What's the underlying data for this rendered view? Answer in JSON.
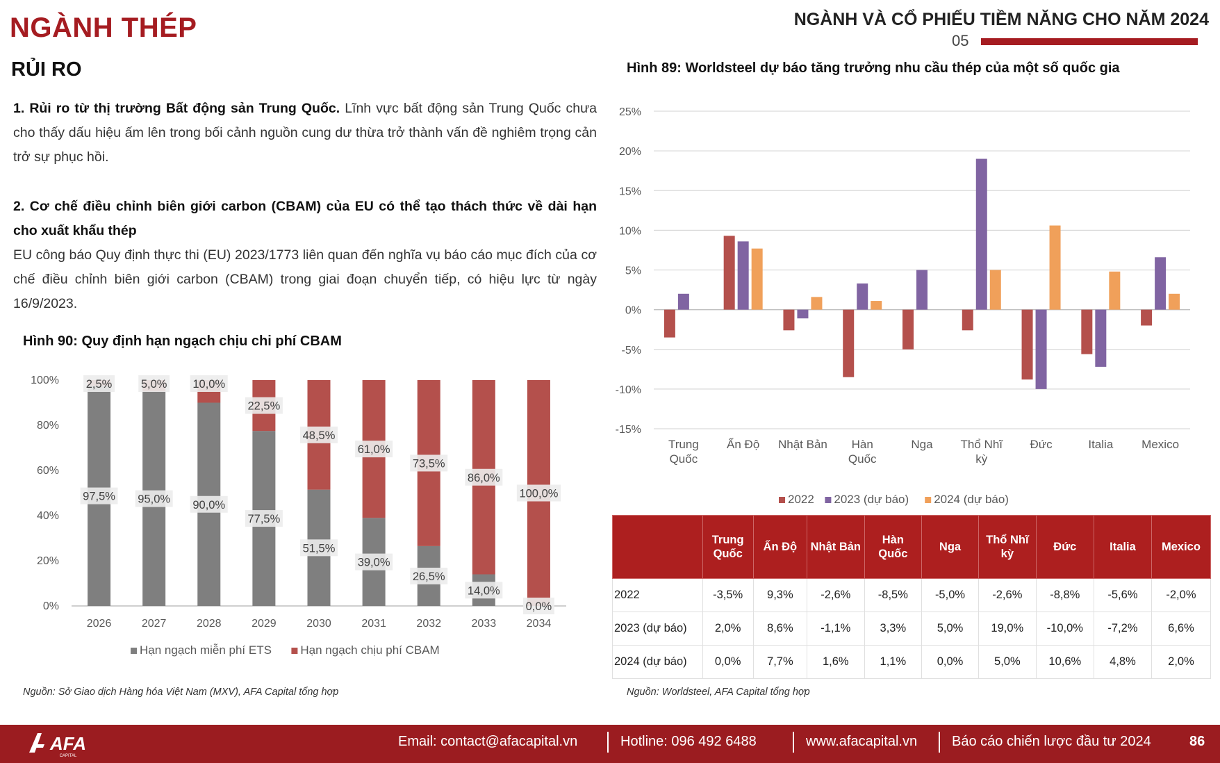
{
  "header": {
    "section_title": "NGÀNH THÉP",
    "report_title": "NGÀNH VÀ CỔ PHIẾU TIỀM NĂNG CHO NĂM 2024",
    "chapter_number": "05",
    "subsection_title": "RỦI RO"
  },
  "body": {
    "p1_bold": "1. Rủi ro từ thị trường Bất động sản Trung Quốc.",
    "p1_text": " Lĩnh vực bất động sản Trung Quốc chưa cho thấy dấu hiệu ấm lên trong bối cảnh nguồn cung dư thừa trở thành vấn đề nghiêm trọng cản trở sự phục hồi.",
    "p2_bold": "2. Cơ chế điều chỉnh biên giới carbon (CBAM) của EU có thể tạo thách thức về dài hạn cho xuất khẩu thép",
    "p2_text": "EU công báo Quy định thực thi (EU) 2023/1773 liên quan đến nghĩa vụ báo cáo mục đích của cơ chế điều chỉnh biên giới carbon (CBAM) trong giai đoạn chuyển tiếp, có hiệu lực từ ngày 16/9/2023."
  },
  "fig90": {
    "title": "Hình 90: Quy định hạn ngạch chịu chi phí CBAM",
    "source": "Nguồn:  Sở Giao dịch Hàng hóa Việt Nam (MXV), AFA Capital tổng hợp"
  },
  "fig89": {
    "title": "Hình 89: Worldsteel dự báo tăng trưởng nhu cầu thép của một số quốc gia",
    "source": "Nguồn:  Worldsteel, AFA Capital tổng hợp"
  },
  "chart_data": [
    {
      "type": "bar",
      "stacked": true,
      "categories": [
        "2026",
        "2027",
        "2028",
        "2029",
        "2030",
        "2031",
        "2032",
        "2033",
        "2034"
      ],
      "series": [
        {
          "name": "Hạn ngạch miễn phí ETS",
          "color": "#7f7f7f",
          "values": [
            97.5,
            95.0,
            90.0,
            77.5,
            51.5,
            39.0,
            26.5,
            14.0,
            0.0
          ],
          "labels": [
            "97,5%",
            "95,0%",
            "90,0%",
            "77,5%",
            "51,5%",
            "39,0%",
            "26,5%",
            "14,0%",
            "0,0%"
          ]
        },
        {
          "name": "Hạn ngạch chịu phí CBAM",
          "color": "#b4504c",
          "values": [
            2.5,
            5.0,
            10.0,
            22.5,
            48.5,
            61.0,
            73.5,
            86.0,
            100.0
          ],
          "labels": [
            "2,5%",
            "5,0%",
            "10,0%",
            "22,5%",
            "48,5%",
            "61,0%",
            "73,5%",
            "86,0%",
            "100,0%"
          ]
        }
      ],
      "ylim": [
        0,
        100
      ],
      "yticks": [
        "0%",
        "20%",
        "40%",
        "60%",
        "80%",
        "100%"
      ],
      "legend": "bottom"
    },
    {
      "type": "bar",
      "categories": [
        "Trung Quốc",
        "Ấn Độ",
        "Nhật Bản",
        "Hàn Quốc",
        "Nga",
        "Thổ Nhĩ kỳ",
        "Đức",
        "Italia",
        "Mexico"
      ],
      "category_lines": [
        [
          "Trung",
          "Quốc"
        ],
        [
          "Ấn Độ"
        ],
        [
          "Nhật Bản"
        ],
        [
          "Hàn",
          "Quốc"
        ],
        [
          "Nga"
        ],
        [
          "Thổ Nhĩ",
          "kỳ"
        ],
        [
          "Đức"
        ],
        [
          "Italia"
        ],
        [
          "Mexico"
        ]
      ],
      "series": [
        {
          "name": "2022",
          "color": "#b4504c",
          "values": [
            -3.5,
            9.3,
            -2.6,
            -8.5,
            -5.0,
            -2.6,
            -8.8,
            -5.6,
            -2.0
          ]
        },
        {
          "name": "2023 (dự báo)",
          "color": "#8064a2",
          "values": [
            2.0,
            8.6,
            -1.1,
            3.3,
            5.0,
            19.0,
            -10.0,
            -7.2,
            6.6
          ]
        },
        {
          "name": "2024 (dự báo)",
          "color": "#f0a05a",
          "values": [
            0.0,
            7.7,
            1.6,
            1.1,
            0.0,
            5.0,
            10.6,
            4.8,
            2.0
          ]
        }
      ],
      "ylim": [
        -15,
        25
      ],
      "yticks": [
        "-15%",
        "-10%",
        "-5%",
        "0%",
        "5%",
        "10%",
        "15%",
        "20%",
        "25%"
      ],
      "grid": true,
      "legend": "bottom"
    }
  ],
  "table": {
    "headers": [
      "",
      "Trung Quốc",
      "Ấn Độ",
      "Nhật Bản",
      "Hàn Quốc",
      "Nga",
      "Thổ Nhĩ kỳ",
      "Đức",
      "Italia",
      "Mexico"
    ],
    "rows": [
      [
        "2022",
        "-3,5%",
        "9,3%",
        "-2,6%",
        "-8,5%",
        "-5,0%",
        "-2,6%",
        "-8,8%",
        "-5,6%",
        "-2,0%"
      ],
      [
        "2023 (dự báo)",
        "2,0%",
        "8,6%",
        "-1,1%",
        "3,3%",
        "5,0%",
        "19,0%",
        "-10,0%",
        "-7,2%",
        "6,6%"
      ],
      [
        "2024 (dự báo)",
        "0,0%",
        "7,7%",
        "1,6%",
        "1,1%",
        "0,0%",
        "5,0%",
        "10,6%",
        "4,8%",
        "2,0%"
      ]
    ]
  },
  "footer": {
    "logo_text": "AFA",
    "logo_sub": "CAPITAL",
    "email": "Email: contact@afacapital.vn",
    "hotline": "Hotline: 096 492 6488",
    "website": "www.afacapital.vn",
    "report_name": "Báo cáo chiến lược đầu tư 2024",
    "page_number": "86"
  }
}
